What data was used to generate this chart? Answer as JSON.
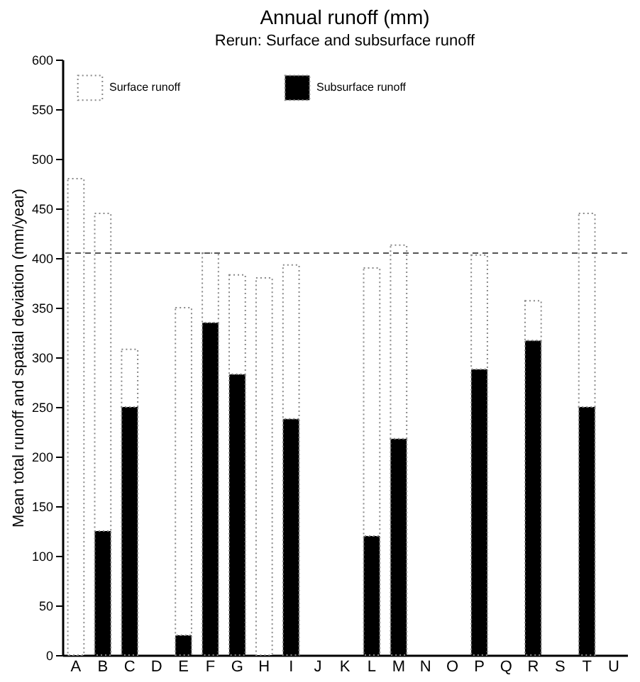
{
  "chart_data": {
    "type": "bar",
    "title": "Annual runoff (mm)",
    "subtitle": "Rerun: Surface and subsurface runoff",
    "ylabel": "Mean total runoff and spatial deviation (mm/year)",
    "categories": [
      "A",
      "B",
      "C",
      "D",
      "E",
      "F",
      "G",
      "H",
      "I",
      "J",
      "K",
      "L",
      "M",
      "N",
      "O",
      "P",
      "Q",
      "R",
      "S",
      "T",
      "U"
    ],
    "stacked": true,
    "series": [
      {
        "name": "Subsurface runoff",
        "color": "#000000",
        "values": [
          0,
          125,
          250,
          null,
          20,
          335,
          283,
          null,
          238,
          null,
          null,
          120,
          218,
          null,
          null,
          288,
          null,
          317,
          null,
          250,
          null
        ]
      },
      {
        "name": "Surface runoff",
        "color": "#ffffff",
        "values": [
          480,
          320,
          58,
          null,
          330,
          70,
          100,
          380,
          155,
          null,
          null,
          270,
          195,
          null,
          null,
          115,
          null,
          40,
          null,
          195,
          null
        ]
      }
    ],
    "ylim": [
      0,
      600
    ],
    "yticks": [
      0,
      50,
      100,
      150,
      200,
      250,
      300,
      350,
      400,
      450,
      500,
      550,
      600
    ],
    "ref_lines": [
      {
        "axis": "y",
        "value": 405,
        "line_style": "dashed",
        "color": "#555555"
      }
    ],
    "grid": false,
    "legend": "top left"
  }
}
